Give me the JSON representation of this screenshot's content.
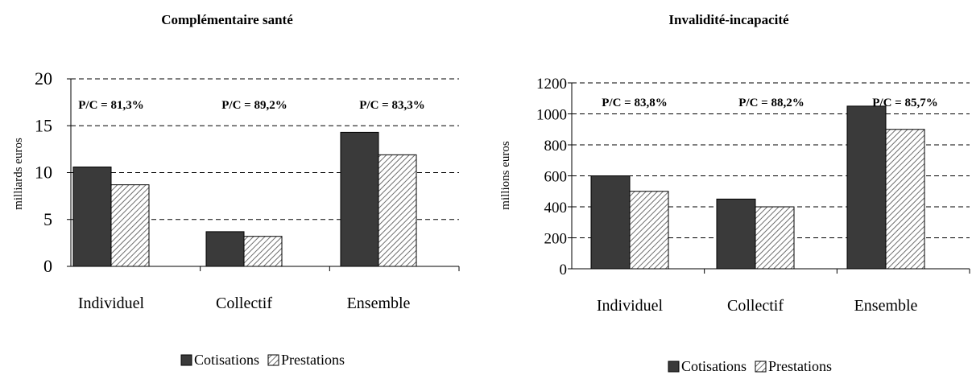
{
  "chart_data": [
    {
      "type": "bar",
      "title": "Complémentaire santé",
      "ylabel": "milliards euros",
      "xlabel": "",
      "categories": [
        "Individuel",
        "Collectif",
        "Ensemble"
      ],
      "series": [
        {
          "name": "Cotisations",
          "values": [
            10.6,
            3.7,
            14.3
          ]
        },
        {
          "name": "Prestations",
          "values": [
            8.7,
            3.2,
            11.9
          ]
        }
      ],
      "annotations": [
        "P/C = 81,3%",
        "P/C = 89,2%",
        "P/C = 83,3%"
      ],
      "ylim": [
        0,
        20
      ],
      "yticks": [
        0,
        5,
        10,
        15,
        20
      ],
      "grid": true,
      "legend": "bottom"
    },
    {
      "type": "bar",
      "title": "Invalidité-incapacité",
      "ylabel": "millions euros",
      "xlabel": "",
      "categories": [
        "Individuel",
        "Collectif",
        "Ensemble"
      ],
      "series": [
        {
          "name": "Cotisations",
          "values": [
            600,
            450,
            1050
          ]
        },
        {
          "name": "Prestations",
          "values": [
            500,
            400,
            900
          ]
        }
      ],
      "annotations": [
        "P/C = 83,8%",
        "P/C = 88,2%",
        "P/C = 85,7%"
      ],
      "ylim": [
        0,
        1200
      ],
      "yticks": [
        0,
        200,
        400,
        600,
        800,
        1000,
        1200
      ],
      "grid": true,
      "legend": "bottom"
    }
  ],
  "colors": {
    "cotisations": "#3a3a3a",
    "prestations_hatch": "#7a7a7a",
    "grid": "#000000"
  }
}
